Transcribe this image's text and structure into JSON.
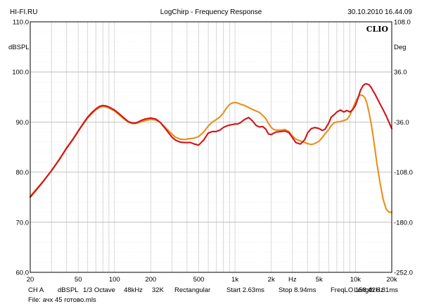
{
  "header": {
    "left": "HI-FI.RU",
    "center": "LogChirp - Frequency Response",
    "right": "30.10.2010 16.44.09"
  },
  "brand": "CLIO",
  "footer": {
    "line1": [
      "CH A",
      "dBSPL",
      "1/3 Octave",
      "48kHz",
      "32K",
      "Rectangular",
      "Start 2.63ms",
      "Stop 8.94ms",
      "FreqLO 158.42Hz",
      "Length 6.31ms"
    ],
    "line2": "File: ачх 45 готово.mls"
  },
  "chart_data": {
    "type": "line",
    "xscale": "log",
    "xlim": [
      20,
      20000
    ],
    "ylim": [
      60,
      110
    ],
    "y2lim": [
      -252,
      108
    ],
    "ylabel": "dBSPL",
    "y2label": "Deg",
    "grid": true,
    "x_ticks": [
      {
        "v": 20,
        "label": "20"
      },
      {
        "v": 50,
        "label": "50"
      },
      {
        "v": 100,
        "label": "100"
      },
      {
        "v": 200,
        "label": "200"
      },
      {
        "v": 500,
        "label": "500"
      },
      {
        "v": 1000,
        "label": "1k"
      },
      {
        "v": 2000,
        "label": "2k"
      },
      {
        "v": 3000,
        "label": "Hz"
      },
      {
        "v": 5000,
        "label": "5k"
      },
      {
        "v": 10000,
        "label": "10k"
      },
      {
        "v": 20000,
        "label": "20k"
      }
    ],
    "y_ticks": [
      "110.0",
      "100.0",
      "90.0",
      "80.0",
      "70.0",
      "60.0"
    ],
    "y2_ticks": [
      "108.0",
      "36.0",
      "-36.0",
      "-108.0",
      "-180.0",
      "-252.0"
    ],
    "series": [
      {
        "color": "#e8901a",
        "x": [
          20,
          25,
          30,
          35,
          40,
          45,
          50,
          55,
          60,
          65,
          70,
          75,
          80,
          85,
          90,
          100,
          110,
          120,
          130,
          140,
          150,
          160,
          170,
          180,
          200,
          220,
          240,
          260,
          280,
          300,
          320,
          350,
          380,
          400,
          430,
          460,
          500,
          550,
          600,
          650,
          700,
          750,
          800,
          850,
          900,
          950,
          1000,
          1050,
          1100,
          1200,
          1300,
          1400,
          1500,
          1600,
          1700,
          1800,
          1900,
          2000,
          2100,
          2200,
          2400,
          2600,
          2800,
          3000,
          3200,
          3500,
          3800,
          4000,
          4300,
          4600,
          5000,
          5300,
          5600,
          6000,
          6300,
          6700,
          7000,
          7500,
          8000,
          8500,
          9000,
          9500,
          10000,
          10500,
          11000,
          11500,
          12000,
          12500,
          13000,
          13500,
          14000,
          14500,
          15000,
          16000,
          17000,
          18000,
          19000,
          20000
        ],
        "y": [
          75.2,
          77.9,
          80.3,
          82.5,
          84.7,
          86.4,
          88.1,
          89.6,
          90.8,
          91.7,
          92.4,
          92.9,
          93.1,
          93.0,
          92.8,
          92.2,
          91.4,
          90.6,
          90.0,
          89.7,
          89.7,
          89.9,
          90.1,
          90.3,
          90.5,
          90.4,
          89.9,
          89.1,
          88.3,
          87.6,
          87.0,
          86.6,
          86.5,
          86.6,
          86.7,
          86.8,
          87.1,
          88.0,
          89.2,
          90.0,
          90.5,
          91.0,
          91.8,
          92.8,
          93.5,
          93.8,
          93.9,
          93.8,
          93.6,
          93.3,
          92.9,
          92.5,
          92.2,
          91.9,
          91.3,
          90.7,
          89.7,
          88.9,
          88.5,
          88.4,
          88.4,
          88.5,
          88.1,
          87.2,
          86.6,
          86.2,
          85.9,
          85.7,
          85.5,
          85.7,
          86.2,
          86.9,
          87.7,
          88.5,
          89.3,
          89.9,
          90.0,
          90.1,
          90.3,
          90.5,
          91.4,
          92.7,
          94.0,
          95.0,
          95.4,
          95.3,
          94.8,
          93.6,
          91.8,
          89.6,
          87.2,
          84.6,
          82.0,
          77.8,
          74.5,
          72.6,
          72.0,
          72.0
        ]
      },
      {
        "color": "#d1141a",
        "x": [
          20,
          25,
          30,
          35,
          40,
          45,
          50,
          55,
          60,
          65,
          70,
          75,
          80,
          85,
          90,
          100,
          110,
          120,
          130,
          140,
          150,
          160,
          170,
          180,
          200,
          220,
          240,
          260,
          280,
          300,
          320,
          350,
          380,
          400,
          430,
          460,
          500,
          550,
          600,
          650,
          700,
          750,
          800,
          850,
          900,
          950,
          1000,
          1050,
          1100,
          1200,
          1300,
          1400,
          1500,
          1600,
          1700,
          1800,
          1900,
          2000,
          2100,
          2200,
          2400,
          2600,
          2800,
          3000,
          3200,
          3500,
          3800,
          4000,
          4300,
          4600,
          5000,
          5300,
          5600,
          6000,
          6300,
          6700,
          7000,
          7500,
          8000,
          8500,
          9000,
          9500,
          10000,
          10500,
          11000,
          11500,
          12000,
          12500,
          13000,
          13500,
          14000,
          14500,
          15000,
          16000,
          17000,
          18000,
          19000,
          20000
        ],
        "y": [
          75.0,
          77.8,
          80.3,
          82.6,
          84.8,
          86.5,
          88.2,
          89.7,
          91.0,
          91.9,
          92.6,
          93.1,
          93.3,
          93.2,
          93.0,
          92.4,
          91.6,
          90.8,
          90.1,
          89.8,
          89.8,
          90.1,
          90.4,
          90.6,
          90.8,
          90.6,
          89.9,
          88.9,
          87.9,
          87.0,
          86.4,
          86.0,
          85.9,
          85.9,
          85.9,
          85.6,
          85.4,
          86.4,
          87.8,
          88.1,
          88.1,
          88.4,
          88.9,
          89.2,
          89.4,
          89.5,
          89.6,
          89.6,
          89.8,
          90.5,
          90.9,
          90.2,
          89.3,
          89.0,
          89.1,
          88.6,
          87.6,
          87.5,
          87.8,
          88.0,
          88.1,
          88.2,
          87.9,
          86.9,
          85.9,
          85.6,
          86.5,
          87.8,
          88.7,
          88.9,
          88.7,
          88.3,
          88.6,
          89.8,
          91.0,
          91.5,
          92.0,
          92.4,
          92.0,
          92.3,
          92.0,
          92.5,
          93.3,
          94.8,
          96.3,
          97.2,
          97.6,
          97.6,
          97.4,
          96.9,
          96.2,
          95.6,
          94.9,
          93.6,
          92.4,
          91.2,
          89.9,
          88.7
        ]
      }
    ]
  }
}
